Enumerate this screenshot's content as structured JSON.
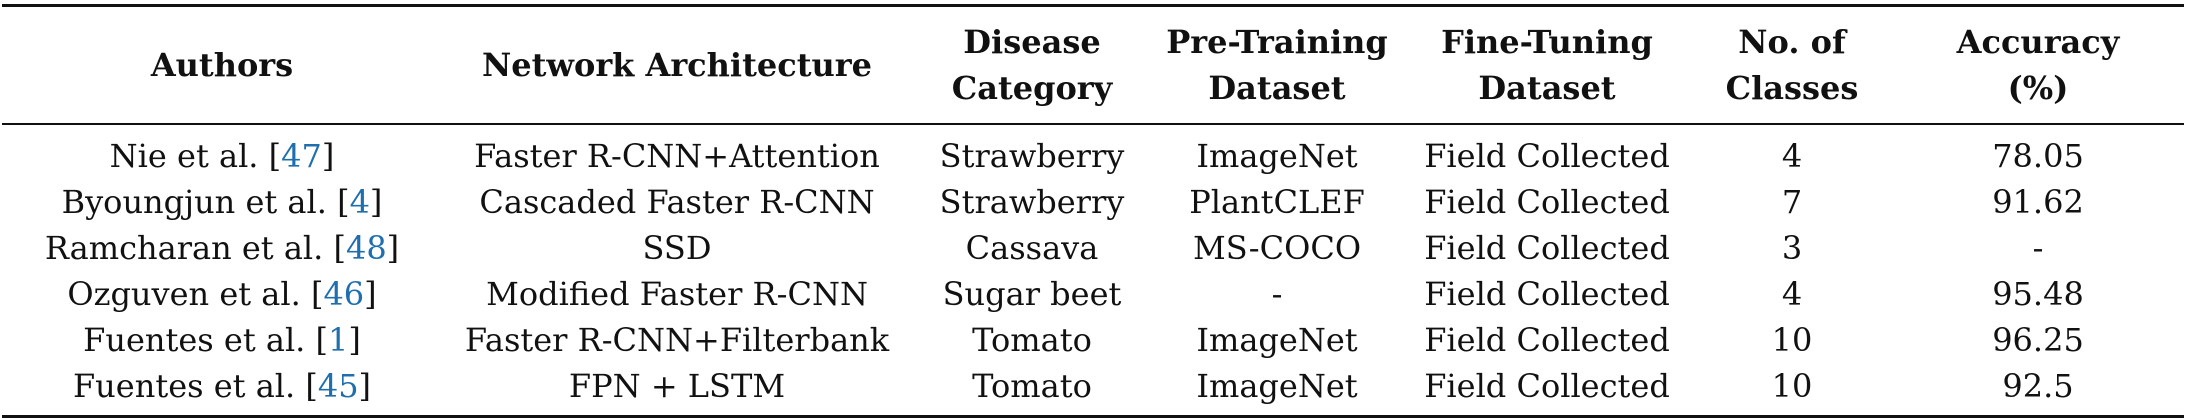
{
  "table": {
    "headers": [
      {
        "line1": "Authors",
        "line2": ""
      },
      {
        "line1": "Network Architecture",
        "line2": ""
      },
      {
        "line1": "Disease",
        "line2": "Category"
      },
      {
        "line1": "Pre-Training",
        "line2": "Dataset"
      },
      {
        "line1": "Fine-Tuning",
        "line2": "Dataset"
      },
      {
        "line1": "No. of",
        "line2": "Classes"
      },
      {
        "line1": "Accuracy",
        "line2": "(%)"
      }
    ],
    "rows": [
      {
        "author": "Nie et al. [",
        "ref": "47",
        "author_end": "]",
        "architecture": "Faster R-CNN+Attention",
        "disease": "Strawberry",
        "pretraining": "ImageNet",
        "finetuning": "Field Collected",
        "classes": "4",
        "accuracy": "78.05"
      },
      {
        "author": "Byoungjun et al. [",
        "ref": "4",
        "author_end": "]",
        "architecture": "Cascaded Faster R-CNN",
        "disease": "Strawberry",
        "pretraining": "PlantCLEF",
        "finetuning": "Field Collected",
        "classes": "7",
        "accuracy": "91.62"
      },
      {
        "author": "Ramcharan et al. [",
        "ref": "48",
        "author_end": "]",
        "architecture": "SSD",
        "disease": "Cassava",
        "pretraining": "MS-COCO",
        "finetuning": "Field Collected",
        "classes": "3",
        "accuracy": "-"
      },
      {
        "author": "Ozguven et al. [",
        "ref": "46",
        "author_end": "]",
        "architecture": "Modified Faster R-CNN",
        "disease": "Sugar beet",
        "pretraining": "-",
        "finetuning": "Field Collected",
        "classes": "4",
        "accuracy": "95.48"
      },
      {
        "author": "Fuentes et al. [",
        "ref": "1",
        "author_end": "]",
        "architecture": "Faster R-CNN+Filterbank",
        "disease": "Tomato",
        "pretraining": "ImageNet",
        "finetuning": "Field Collected",
        "classes": "10",
        "accuracy": "96.25"
      },
      {
        "author": "Fuentes et al. [",
        "ref": "45",
        "author_end": "]",
        "architecture": "FPN + LSTM",
        "disease": "Tomato",
        "pretraining": "ImageNet",
        "finetuning": "Field Collected",
        "classes": "10",
        "accuracy": "92.5"
      }
    ]
  },
  "colors": {
    "text": "#111111",
    "citation": "#1f6fae",
    "rule": "#111111"
  }
}
